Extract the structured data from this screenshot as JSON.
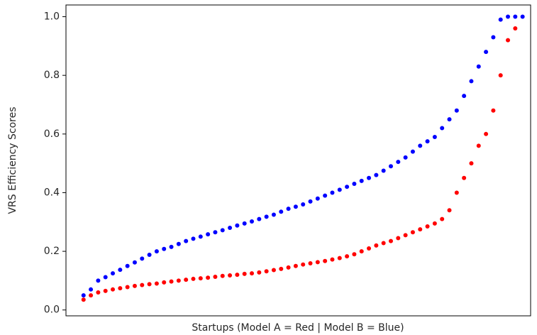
{
  "chart_data": {
    "type": "scatter",
    "xlabel": "Startups (Model A = Red | Model B = Blue)",
    "ylabel": "VRS Efficiency Scores",
    "x": [
      0,
      10,
      20,
      30,
      40,
      50,
      60,
      70,
      80,
      90,
      100,
      110,
      120,
      130,
      140,
      150,
      160,
      170,
      180,
      190,
      200,
      210,
      220,
      230,
      240,
      250,
      260,
      270,
      280,
      290,
      300,
      310,
      320,
      330,
      340,
      350,
      360,
      370,
      380,
      390,
      400,
      410,
      420,
      430,
      440,
      450,
      460,
      470,
      480,
      490,
      500,
      510,
      520,
      530,
      540,
      550,
      560,
      570,
      580,
      590,
      600
    ],
    "series": [
      {
        "name": "Model A",
        "color": "#ff0000",
        "values": [
          0.035,
          0.05,
          0.06,
          0.065,
          0.07,
          0.074,
          0.078,
          0.082,
          0.085,
          0.088,
          0.09,
          0.094,
          0.097,
          0.1,
          0.103,
          0.106,
          0.108,
          0.11,
          0.113,
          0.116,
          0.118,
          0.12,
          0.123,
          0.125,
          0.128,
          0.132,
          0.136,
          0.14,
          0.145,
          0.15,
          0.155,
          0.159,
          0.163,
          0.167,
          0.172,
          0.177,
          0.183,
          0.19,
          0.2,
          0.21,
          0.22,
          0.228,
          0.235,
          0.245,
          0.255,
          0.265,
          0.275,
          0.285,
          0.295,
          0.31,
          0.34,
          0.4,
          0.45,
          0.5,
          0.56,
          0.6,
          0.68,
          0.8,
          0.92,
          0.96,
          null
        ]
      },
      {
        "name": "Model B",
        "color": "#0000ff",
        "values": [
          0.05,
          0.07,
          0.1,
          0.112,
          0.125,
          0.137,
          0.15,
          0.162,
          0.175,
          0.188,
          0.2,
          0.208,
          0.215,
          0.225,
          0.235,
          0.243,
          0.25,
          0.258,
          0.265,
          0.272,
          0.28,
          0.288,
          0.295,
          0.302,
          0.31,
          0.318,
          0.325,
          0.335,
          0.345,
          0.352,
          0.36,
          0.37,
          0.38,
          0.39,
          0.4,
          0.41,
          0.42,
          0.43,
          0.44,
          0.45,
          0.46,
          0.475,
          0.49,
          0.505,
          0.52,
          0.54,
          0.56,
          0.575,
          0.59,
          0.62,
          0.65,
          0.68,
          0.73,
          0.78,
          0.83,
          0.88,
          0.93,
          0.99,
          1.0,
          1.0,
          1.0
        ]
      }
    ],
    "xlim": [
      -24,
      611
    ],
    "ylim": [
      -0.02,
      1.04
    ],
    "yticks": [
      {
        "value": 0,
        "label": "0.0"
      },
      0.2,
      0.4,
      0.6,
      0.8,
      {
        "value": 1,
        "label": "1.0"
      }
    ]
  }
}
